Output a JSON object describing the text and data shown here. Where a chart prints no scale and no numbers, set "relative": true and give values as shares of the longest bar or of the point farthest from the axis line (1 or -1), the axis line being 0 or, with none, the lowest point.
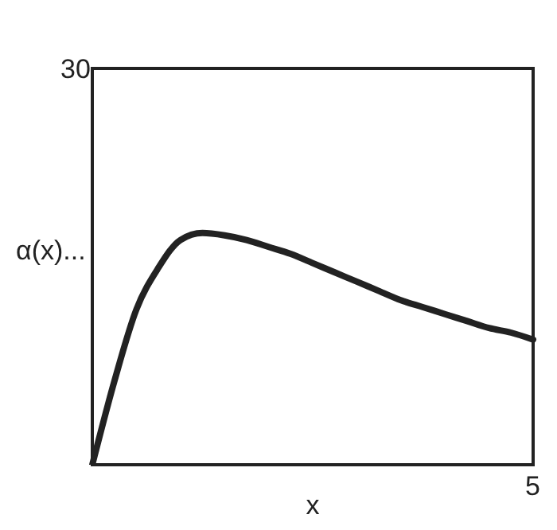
{
  "chart_data": {
    "type": "line",
    "xlabel": "x",
    "ylabel": "α(x)...",
    "relative": true,
    "categories": [
      null,
      null,
      null,
      null,
      null,
      null,
      null,
      null,
      null,
      null,
      null,
      null,
      null,
      null,
      null,
      null,
      null,
      null,
      null,
      null,
      null
    ],
    "series": [
      {
        "color": "#222222",
        "values": [
          0,
          0.36,
          0.67,
          0.85,
          0.97,
          1,
          0.99,
          0.97,
          0.94,
          0.91,
          0.87,
          0.83,
          0.79,
          0.75,
          0.71,
          0.68,
          0.65,
          0.62,
          0.59,
          0.57,
          0.54
        ]
      }
    ],
    "annotations": [
      "30",
      "5"
    ],
    "grid": false,
    "legend": false,
    "marker": "none",
    "line_style": "solid"
  }
}
